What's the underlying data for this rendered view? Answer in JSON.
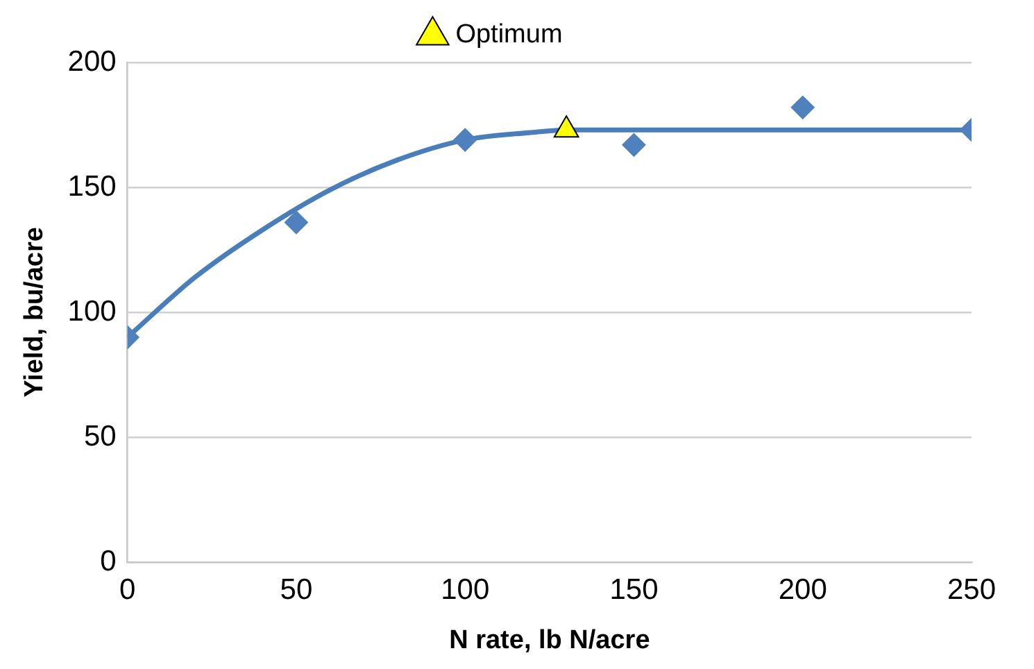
{
  "chart_data": {
    "type": "scatter",
    "xlabel": "N rate, lb N/acre",
    "ylabel": "Yield, bu/acre",
    "xlim": [
      0,
      250
    ],
    "xticks": [
      0,
      50,
      100,
      150,
      200,
      250
    ],
    "ylim": [
      0,
      200
    ],
    "yticks": [
      0,
      50,
      100,
      150,
      200
    ],
    "grid": "y",
    "legend": "top",
    "series": [
      {
        "type": "line",
        "color": "#4a7ebb",
        "marker": "none",
        "x": [
          0,
          20,
          40,
          60,
          80,
          100,
          120,
          130,
          250
        ],
        "values": [
          90,
          114,
          133,
          149,
          161,
          169,
          172,
          173,
          173
        ]
      },
      {
        "color": "#4f81bd",
        "marker": "diamond",
        "x": [
          0,
          50,
          100,
          150,
          200,
          250
        ],
        "values": [
          90,
          136,
          169,
          167,
          182,
          173
        ]
      },
      {
        "name": "Optimum",
        "color": "#ffff00",
        "marker": "triangle",
        "x": [
          130
        ],
        "values": [
          173
        ]
      }
    ]
  }
}
